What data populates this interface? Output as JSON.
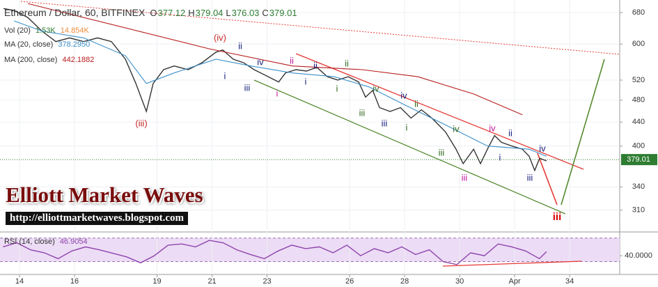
{
  "chart_data": [
    {
      "type": "line",
      "title": "Ethereum / Dollar, 60, BITFINEX",
      "ohlc_labels": [
        "O",
        "H",
        "L",
        "C"
      ],
      "ohlc": [
        377.12,
        379.04,
        376.03,
        379.01
      ],
      "volume": {
        "name": "Vol (20)",
        "labels": [
          "1.53K",
          "14.854K"
        ],
        "colors": [
          "#2e7d32",
          "#ef8c3a"
        ]
      },
      "log_scale": true,
      "grid": true,
      "xlim": [
        13.29,
        35.82
      ],
      "xticks": [
        14,
        16,
        19,
        21,
        23,
        26,
        28,
        30,
        {
          "value": 32,
          "label": "Apr"
        },
        34
      ],
      "ylim": [
        285,
        715
      ],
      "yticks": [
        310,
        340,
        400,
        440,
        480,
        520,
        600,
        680
      ],
      "series": [
        {
          "color": "#333333",
          "x": [
            13.42,
            13.8,
            14.3,
            14.81,
            15.32,
            15.82,
            16.33,
            16.84,
            17.34,
            17.85,
            18.23,
            18.61,
            18.86,
            19.24,
            19.62,
            20.13,
            20.63,
            21.14,
            21.39,
            21.77,
            22.15,
            22.53,
            23.04,
            23.42,
            23.67,
            24.05,
            24.43,
            24.81,
            25.19,
            25.57,
            25.95,
            26.33,
            26.58,
            26.84,
            27.09,
            27.47,
            27.85,
            28.23,
            28.61,
            28.99,
            29.49,
            29.87,
            30.13,
            30.51,
            30.76,
            31.01,
            31.27,
            31.52,
            31.9,
            32.28,
            32.53,
            32.73,
            32.91,
            33.16
          ],
          "values": [
            691,
            686,
            667,
            632,
            606,
            615,
            606,
            615,
            606,
            565,
            513,
            459,
            513,
            542,
            550,
            542,
            557,
            581,
            586,
            565,
            557,
            542,
            527,
            516,
            535,
            542,
            539,
            547,
            527,
            520,
            527,
            516,
            486,
            499,
            466,
            459,
            466,
            447,
            462,
            447,
            423,
            395,
            373,
            395,
            373,
            395,
            417,
            406,
            400,
            395,
            384,
            363,
            381,
            377
          ]
        },
        {
          "name": "MA (20, close)",
          "last_label": "378.2950",
          "color": "#3a8fc9",
          "x": [
            13.8,
            14.81,
            16.33,
            17.85,
            18.61,
            19.62,
            21.14,
            22.41,
            23.92,
            25.44,
            26.71,
            27.97,
            29.49,
            31.01,
            32.53,
            33.16
          ],
          "values": [
            658,
            632,
            615,
            573,
            513,
            535,
            565,
            550,
            535,
            527,
            506,
            472,
            435,
            400,
            395,
            384
          ]
        },
        {
          "name": "MA (200, close)",
          "last_label": "442.1882",
          "color": "#b71c1c",
          "x": [
            14.3,
            20.89,
            23.92,
            26.46,
            28.48,
            30.51,
            32.28
          ],
          "values": [
            705,
            589,
            550,
            542,
            527,
            492,
            453
          ]
        }
      ],
      "annotations": [
        {
          "text": "(iii)",
          "color": "#c62828"
        },
        {
          "text": "(iv)",
          "color": "#c62828"
        },
        {
          "text": "ii",
          "color": "#1a237e"
        },
        {
          "text": "i",
          "color": "#1a237e"
        },
        {
          "text": "iii",
          "color": "#1a237e"
        },
        {
          "text": "iv",
          "color": "#1a237e"
        },
        {
          "text": "i",
          "color": "#c2189b"
        },
        {
          "text": "ii",
          "color": "#c2189b"
        },
        {
          "text": "ii",
          "color": "#1a237e"
        },
        {
          "text": "i",
          "color": "#1a237e"
        },
        {
          "text": "i",
          "color": "#33691e"
        },
        {
          "text": "ii",
          "color": "#33691e"
        },
        {
          "text": "iv",
          "color": "#33691e"
        },
        {
          "text": "iii",
          "color": "#33691e"
        },
        {
          "text": "iii",
          "color": "#1a237e"
        },
        {
          "text": "iv",
          "color": "#1a237e"
        },
        {
          "text": "ii",
          "color": "#33691e"
        },
        {
          "text": "i",
          "color": "#33691e"
        },
        {
          "text": "iv",
          "color": "#33691e"
        },
        {
          "text": "iii",
          "color": "#33691e"
        },
        {
          "text": "iii",
          "color": "#c2189b"
        },
        {
          "text": "iv",
          "color": "#c2189b"
        },
        {
          "text": "ii",
          "color": "#1a237e"
        },
        {
          "text": "i",
          "color": "#1a237e"
        },
        {
          "text": "iv",
          "color": "#1a237e"
        },
        {
          "text": "iii",
          "color": "#1a237e"
        },
        {
          "text": "iii",
          "color": "#d50000"
        }
      ],
      "brand": {
        "title": "Elliott Market Waves",
        "url": "http://elliottmarketwaves.blogspot.com"
      }
    },
    {
      "type": "line",
      "title": "RSI (14, close)",
      "last_label": "46.9054",
      "ylim": [
        9.4,
        79.1
      ],
      "yticks": [
        {
          "value": 40,
          "label": "40.0000"
        }
      ],
      "bands": [
        30,
        70
      ],
      "series": [
        {
          "color": "#8e44ad",
          "x": [
            13.4,
            13.9,
            14.4,
            14.9,
            15.4,
            15.9,
            16.4,
            16.9,
            17.4,
            17.9,
            18.4,
            18.9,
            19.4,
            19.9,
            20.4,
            20.9,
            21.4,
            21.9,
            22.4,
            22.9,
            23.4,
            23.9,
            24.4,
            24.9,
            25.4,
            25.9,
            26.4,
            26.9,
            27.4,
            27.9,
            28.4,
            28.9,
            29.4,
            29.9,
            30.4,
            30.9,
            31.4,
            31.9,
            32.4,
            32.9,
            33.16
          ],
          "values": [
            55,
            62,
            50,
            45,
            35,
            48,
            55,
            50,
            44,
            38,
            28,
            40,
            58,
            60,
            55,
            66,
            62,
            50,
            42,
            35,
            48,
            58,
            52,
            55,
            45,
            58,
            40,
            52,
            45,
            55,
            42,
            50,
            30,
            25,
            45,
            40,
            60,
            55,
            48,
            35,
            46.9
          ]
        }
      ]
    }
  ]
}
